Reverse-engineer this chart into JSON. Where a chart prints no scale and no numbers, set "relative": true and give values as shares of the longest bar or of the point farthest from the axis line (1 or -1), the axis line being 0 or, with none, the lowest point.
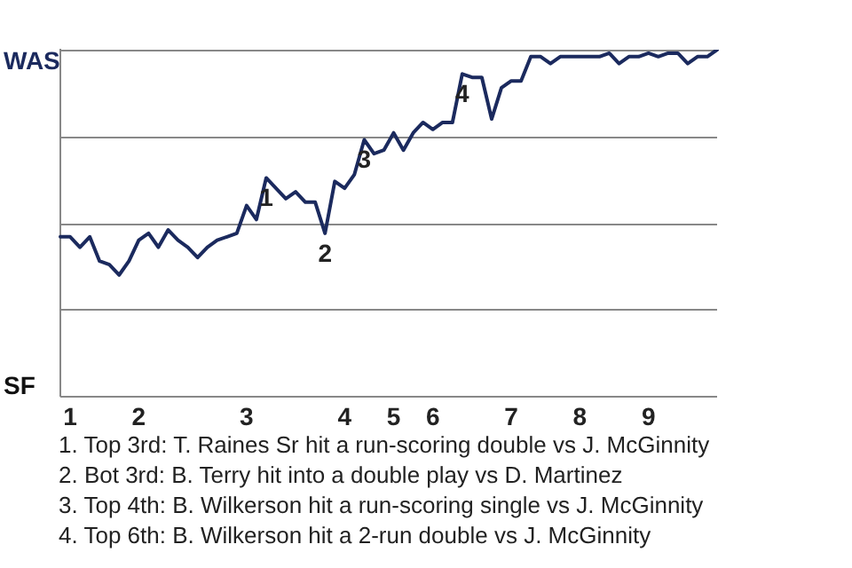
{
  "chart_data": {
    "type": "line",
    "categories": [
      null,
      "1",
      null,
      null,
      null,
      null,
      null,
      null,
      "2",
      null,
      null,
      null,
      null,
      null,
      null,
      null,
      null,
      null,
      null,
      "3",
      null,
      null,
      null,
      null,
      null,
      null,
      null,
      null,
      null,
      "4",
      null,
      null,
      null,
      null,
      "5",
      null,
      null,
      null,
      "6",
      null,
      null,
      null,
      null,
      null,
      null,
      null,
      "7",
      null,
      null,
      null,
      null,
      null,
      null,
      "8",
      null,
      null,
      null,
      null,
      null,
      null,
      "9",
      null,
      null,
      null,
      null,
      null,
      null,
      null
    ],
    "series": [
      {
        "color": "#1b2a5e",
        "values": [
          0.46,
          0.46,
          0.43,
          0.46,
          0.39,
          0.38,
          0.35,
          0.39,
          0.45,
          0.47,
          0.43,
          0.48,
          0.45,
          0.43,
          0.4,
          0.43,
          0.45,
          0.46,
          0.47,
          0.55,
          0.51,
          0.63,
          0.6,
          0.57,
          0.59,
          0.56,
          0.56,
          0.47,
          0.62,
          0.6,
          0.64,
          0.74,
          0.7,
          0.71,
          0.76,
          0.71,
          0.76,
          0.79,
          0.77,
          0.79,
          0.79,
          0.93,
          0.92,
          0.92,
          0.8,
          0.89,
          0.91,
          0.91,
          0.98,
          0.98,
          0.96,
          0.98,
          0.98,
          0.98,
          0.98,
          0.98,
          0.99,
          0.96,
          0.98,
          0.98,
          0.99,
          0.98,
          0.99,
          0.99,
          0.96,
          0.98,
          0.98,
          1.0
        ]
      }
    ],
    "relative": true,
    "grid": "y",
    "legend": false,
    "marker": "none",
    "annotations": [
      "WAS",
      "SF",
      {
        "text": "1",
        "y": 0.63
      },
      {
        "text": "2",
        "y": 0.47
      },
      {
        "text": "3",
        "y": 0.74
      },
      {
        "text": "4",
        "y": 0.93
      },
      "1. Top 3rd: T. Raines Sr hit a run-scoring double vs J. McGinnity",
      "2. Bot 3rd: B. Terry hit into a double play vs D. Martinez",
      "3. Top 4th: B. Wilkerson hit a run-scoring single vs J. McGinnity",
      "4. Top 6th: B. Wilkerson hit a 2-run double vs J. McGinnity"
    ]
  }
}
